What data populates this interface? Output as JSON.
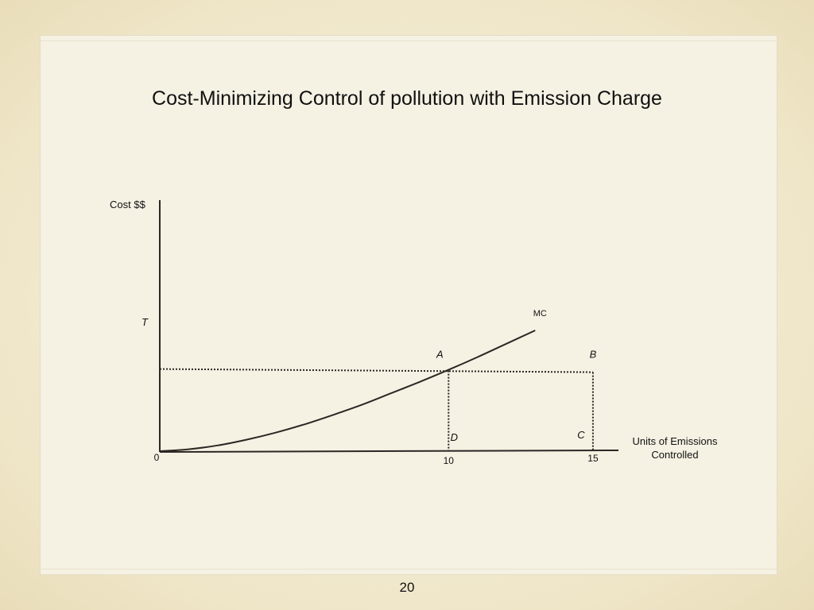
{
  "slide": {
    "title": "Cost-Minimizing Control of pollution with Emission Charge",
    "page_number": "20"
  },
  "chart_data": {
    "type": "line",
    "title": "Cost-Minimizing Control of pollution with Emission Charge",
    "ylabel": "Cost $$",
    "xlabel_lines": [
      "Units of Emissions",
      "Controlled"
    ],
    "xlim": [
      0,
      15
    ],
    "ylim": [
      0,
      100
    ],
    "x_ticks": [
      {
        "value": 0,
        "label": "0"
      },
      {
        "value": 10,
        "label": "10"
      },
      {
        "value": 15,
        "label": "15"
      }
    ],
    "series": [
      {
        "name": "MC",
        "x": [
          0,
          1,
          2,
          3,
          4,
          5,
          6,
          7,
          8,
          9,
          10,
          11,
          12,
          13
        ],
        "y": [
          0,
          1.5,
          4.5,
          9,
          14.5,
          21,
          28.5,
          36.5,
          45.5,
          54.5,
          64,
          74,
          84.5,
          95
        ]
      }
    ],
    "charge": {
      "label": "T",
      "value": 64
    },
    "points": [
      {
        "label": "A",
        "x": 10,
        "y": 64
      },
      {
        "label": "B",
        "x": 15,
        "y": 64
      },
      {
        "label": "C",
        "x": 15,
        "y": 0
      },
      {
        "label": "D",
        "x": 10,
        "y": 0
      }
    ],
    "grid": false,
    "legend": "none"
  }
}
